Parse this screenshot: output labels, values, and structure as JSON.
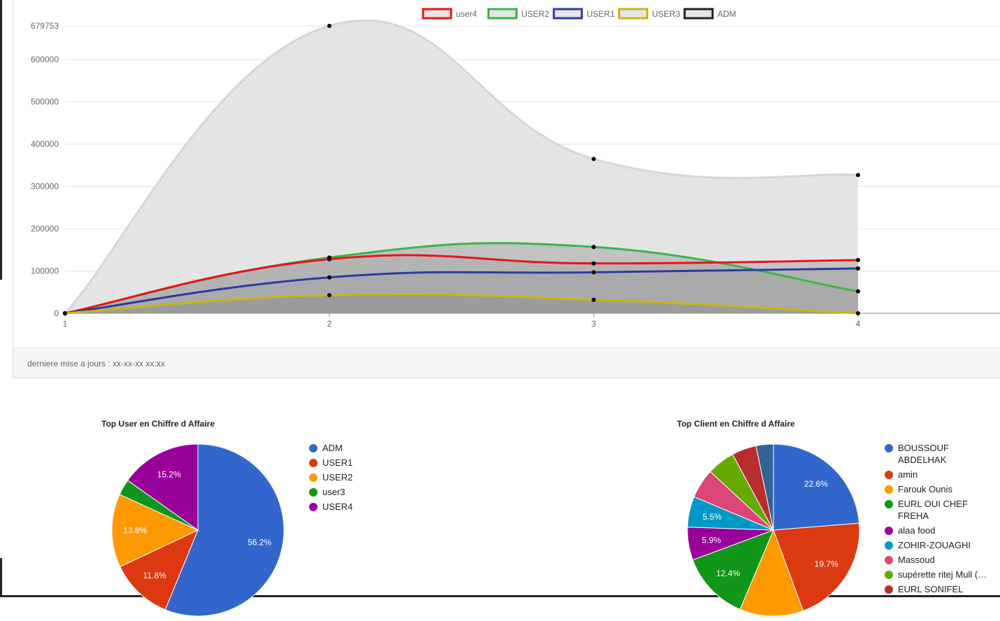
{
  "footer": {
    "text": "derniere mise a jours : xx-xx-xx xx:xx"
  },
  "chart_data": [
    {
      "type": "area",
      "x": [
        1,
        2,
        3,
        4
      ],
      "ylim": [
        0,
        679753
      ],
      "y_ticks": [
        0,
        100000,
        200000,
        300000,
        400000,
        500000,
        600000,
        679753
      ],
      "y_tick_labels": [
        "0",
        "100000",
        "200000",
        "300000",
        "400000",
        "500000",
        "600000",
        "679753"
      ],
      "x_tick_labels": [
        "1",
        "2",
        "3",
        "4"
      ],
      "grid": true,
      "legend_position": "top",
      "series": [
        {
          "name": "user4",
          "values": [
            0,
            128000,
            118000,
            126000
          ],
          "color": "#e8141b",
          "fill": "#a9a9a9"
        },
        {
          "name": "USER2",
          "values": [
            0,
            132000,
            157000,
            52000
          ],
          "color": "#3cb44b",
          "fill": "#a6a6a6"
        },
        {
          "name": "USER1",
          "values": [
            0,
            85000,
            97000,
            106000
          ],
          "color": "#2e3a9f",
          "fill": "#a3a3a3"
        },
        {
          "name": "USER3",
          "values": [
            0,
            43000,
            32000,
            0
          ],
          "color": "#cbb516",
          "fill": "#8e8e8e"
        },
        {
          "name": "ADM",
          "values": [
            0,
            679753,
            365000,
            327000
          ],
          "color": "#d6d6d6",
          "fill": "#e4e4e4"
        }
      ]
    },
    {
      "type": "pie",
      "title": "Top User en Chiffre d Affaire",
      "labels": [
        "ADM",
        "USER1",
        "USER2",
        "user3",
        "USER4"
      ],
      "values": [
        56.2,
        11.8,
        13.8,
        3.0,
        15.2
      ],
      "slice_labels": [
        "56.2%",
        "11.8%",
        "13.8%",
        "",
        "15.2%"
      ],
      "colors": [
        "#3366cc",
        "#dc3912",
        "#ff9900",
        "#109618",
        "#990099"
      ],
      "legend_position": "right"
    },
    {
      "type": "pie",
      "title": "Top Client en Chiffre d Affaire",
      "labels": [
        "BOUSSOUF ABDELHAK",
        "amin",
        "Farouk Ounis",
        "EURL OUI CHEF FREHA",
        "alaa food",
        "ZOHIR-ZOUAGHI",
        "Massoud",
        "supérette ritej Mull (…",
        "EURL SONIFEL",
        ""
      ],
      "values": [
        22.6,
        19.7,
        11.4,
        12.4,
        5.9,
        5.5,
        5.3,
        5.0,
        4.4,
        3.1
      ],
      "slice_labels": [
        "22.6%",
        "19.7%",
        "",
        "12.4%",
        "5.9%",
        "5.5%",
        "",
        "",
        "",
        ""
      ],
      "colors": [
        "#3366cc",
        "#dc3912",
        "#ff9900",
        "#109618",
        "#990099",
        "#0099c6",
        "#dd4477",
        "#66aa00",
        "#b82e2e",
        "#316395"
      ],
      "legend_position": "right"
    }
  ]
}
